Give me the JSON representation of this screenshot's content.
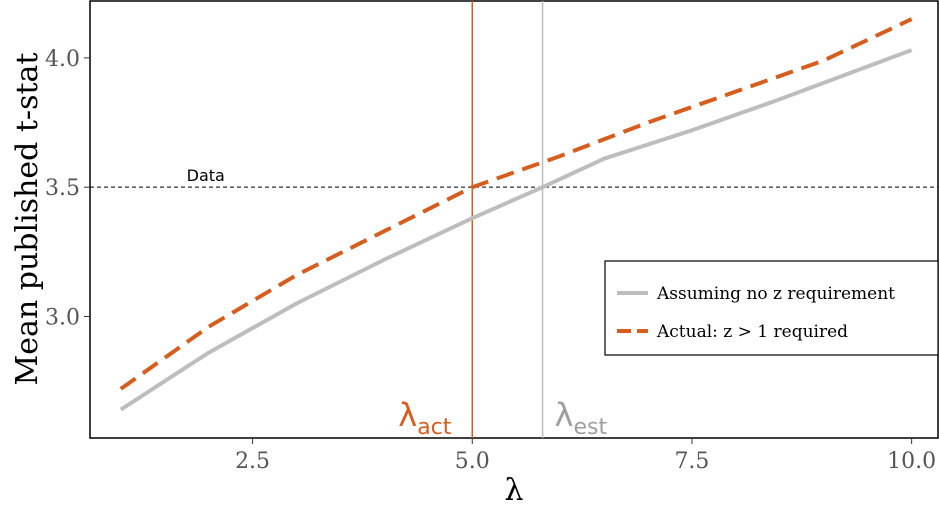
{
  "chart_data": {
    "type": "line",
    "xlabel": "λ",
    "ylabel": "Mean published t-stat",
    "xlim": [
      0.65,
      10.3
    ],
    "ylim": [
      2.53,
      4.22
    ],
    "x_ticks": [
      2.5,
      5.0,
      7.5,
      10.0
    ],
    "x_tick_labels": [
      "2.5",
      "5.0",
      "7.5",
      "10.0"
    ],
    "y_ticks": [
      3.0,
      3.5,
      4.0
    ],
    "y_tick_labels": [
      "3.0",
      "3.5",
      "4.0"
    ],
    "grid": false,
    "legend_position": "right",
    "series": [
      {
        "name": "Assuming no z requirement",
        "color": "#bdbdbd",
        "dash": "solid",
        "x": [
          1.0,
          2.0,
          3.0,
          4.0,
          5.0,
          5.8,
          6.5,
          7.5,
          8.5,
          10.0
        ],
        "y": [
          2.64,
          2.86,
          3.05,
          3.22,
          3.38,
          3.5,
          3.61,
          3.72,
          3.84,
          4.03
        ]
      },
      {
        "name": "Actual: z > 1 required",
        "color": "#d55e1f",
        "dash": "dashed",
        "x": [
          1.0,
          2.0,
          3.0,
          4.0,
          5.0,
          6.0,
          7.0,
          8.0,
          9.0,
          10.0
        ],
        "y": [
          2.72,
          2.96,
          3.16,
          3.33,
          3.5,
          3.62,
          3.75,
          3.87,
          3.99,
          4.15
        ]
      }
    ],
    "reference_lines": {
      "horizontal": {
        "y": 3.5,
        "label": "Data",
        "color": "#000000"
      },
      "verticals": [
        {
          "x": 5.0,
          "label_main": "λ",
          "label_sub": "act",
          "color": "#d55e1f"
        },
        {
          "x": 5.8,
          "label_main": "λ",
          "label_sub": "est",
          "color": "#bdbdbd"
        }
      ]
    }
  }
}
